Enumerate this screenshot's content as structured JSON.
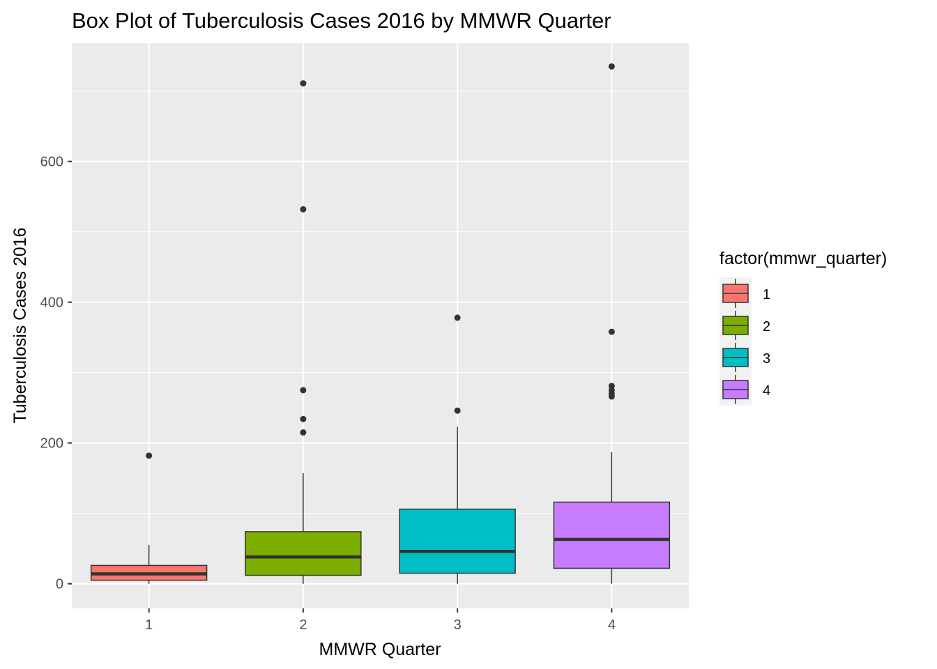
{
  "chart_data": {
    "type": "boxplot",
    "title": "Box Plot of Tuberculosis Cases 2016 by MMWR Quarter",
    "xlabel": "MMWR Quarter",
    "ylabel": "Tuberculosis Cases 2016",
    "ylim": [
      -35,
      768
    ],
    "yticks": [
      0,
      200,
      400,
      600
    ],
    "grid": true,
    "legend": {
      "title": "factor(mmwr_quarter)",
      "placement": "right"
    },
    "categories": [
      "1",
      "2",
      "3",
      "4"
    ],
    "series": [
      {
        "name": "1",
        "color": "#F8766D",
        "whisker_low": 0,
        "q1": 5,
        "median": 14,
        "q3": 26,
        "whisker_high": 55,
        "outliers": [
          182
        ]
      },
      {
        "name": "2",
        "color": "#7CAE00",
        "whisker_low": 0,
        "q1": 12,
        "median": 38,
        "q3": 74,
        "whisker_high": 157,
        "outliers": [
          215,
          234,
          275,
          532,
          711
        ]
      },
      {
        "name": "3",
        "color": "#00BFC4",
        "whisker_low": 0,
        "q1": 15,
        "median": 46,
        "q3": 106,
        "whisker_high": 223,
        "outliers": [
          246,
          378
        ]
      },
      {
        "name": "4",
        "color": "#C77CFF",
        "whisker_low": 0,
        "q1": 22,
        "median": 63,
        "q3": 116,
        "whisker_high": 187,
        "outliers": [
          266,
          270,
          275,
          281,
          358,
          735
        ]
      }
    ]
  }
}
